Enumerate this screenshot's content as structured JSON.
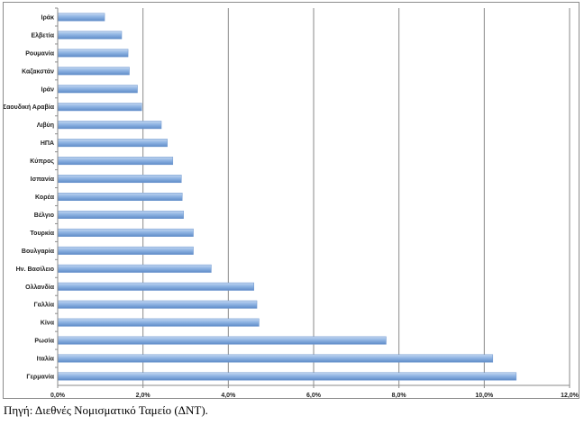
{
  "chart_data": {
    "type": "bar",
    "orientation": "horizontal",
    "categories": [
      "Ιράκ",
      "Ελβετία",
      "Ρουμανία",
      "Καζακστάν",
      "Ιράν",
      "Σαουδική Αραβία",
      "Λιβύη",
      "ΗΠΑ",
      "Κύπρος",
      "Ισπανία",
      "Κορέα",
      "Βέλγιο",
      "Τουρκία",
      "Βουλγαρία",
      "Ην. Βασίλειο",
      "Ολλανδία",
      "Γαλλία",
      "Κίνα",
      "Ρωσία",
      "Ιταλία",
      "Γερμανία"
    ],
    "values": [
      1.1,
      1.5,
      1.65,
      1.68,
      1.87,
      1.97,
      2.43,
      2.57,
      2.7,
      2.9,
      2.92,
      2.95,
      3.18,
      3.18,
      3.6,
      4.6,
      4.67,
      4.72,
      7.7,
      10.2,
      10.75
    ],
    "x_ticks": [
      "0,0%",
      "2,0%",
      "4,0%",
      "6,0%",
      "8,0%",
      "10,0%",
      "12,0%"
    ],
    "xlim": [
      0,
      12
    ],
    "grid": "vertical",
    "bar_color": "#8fb4e3",
    "title": "",
    "xlabel": "",
    "ylabel": ""
  },
  "source": "Πηγή: Διεθνές Νομισματικό Ταμείο (ΔΝΤ)."
}
